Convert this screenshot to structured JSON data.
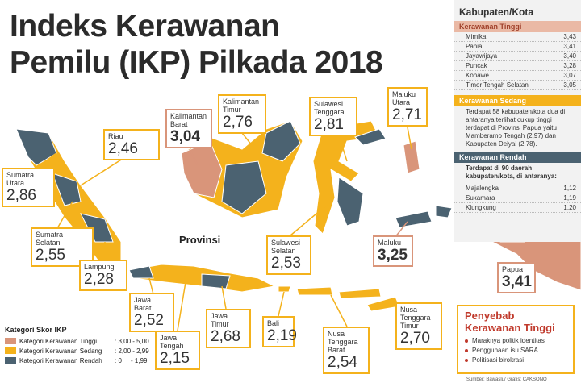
{
  "header": {
    "title_lines": [
      "Indeks Kerawanan",
      "Pemilu (IKP) Pilkada 2018"
    ]
  },
  "map": {
    "label": "Provinsi",
    "provinces": [
      {
        "name": "Riau",
        "score": "2,46",
        "level": "sedang"
      },
      {
        "name": "Sumatra Utara",
        "score": "2,86",
        "level": "sedang"
      },
      {
        "name": "Sumatra Selatan",
        "score": "2,55",
        "level": "sedang"
      },
      {
        "name": "Lampung",
        "score": "2,28",
        "level": "sedang"
      },
      {
        "name": "Kalimantan Barat",
        "score": "3,04",
        "level": "tinggi"
      },
      {
        "name": "Kalimantan Timur",
        "score": "2,76",
        "level": "sedang"
      },
      {
        "name": "Sulawesi Tenggara",
        "score": "2,81",
        "level": "sedang"
      },
      {
        "name": "Maluku Utara",
        "score": "2,71",
        "level": "sedang"
      },
      {
        "name": "Sulawesi Selatan",
        "score": "2,53",
        "level": "sedang"
      },
      {
        "name": "Maluku",
        "score": "3,25",
        "level": "tinggi"
      },
      {
        "name": "Papua",
        "score": "3,41",
        "level": "tinggi"
      },
      {
        "name": "Jawa Barat",
        "score": "2,52",
        "level": "sedang"
      },
      {
        "name": "Jawa Tengah",
        "score": "2,15",
        "level": "sedang"
      },
      {
        "name": "Jawa Timur",
        "score": "2,68",
        "level": "sedang"
      },
      {
        "name": "Bali",
        "score": "2,19",
        "level": "sedang"
      },
      {
        "name": "Nusa Tenggara Barat",
        "score": "2,54",
        "level": "sedang"
      },
      {
        "name": "Nusa Tenggara Timur",
        "score": "2,70",
        "level": "sedang"
      }
    ]
  },
  "legend": {
    "title": "Kategori Skor IKP",
    "items": [
      {
        "label": "Kategori Kerawanan Tinggi",
        "range": ": 3,00 - 5,00",
        "color": "#d9957a"
      },
      {
        "label": "Kategori Kerawanan Sedang",
        "range": ": 2,00 - 2,99",
        "color": "#f4b21c"
      },
      {
        "label": "Kategori Kerawanan Rendah",
        "range": ": 0     - 1,99",
        "color": "#4b6271"
      }
    ]
  },
  "panel": {
    "title": "Kabupaten/Kota",
    "tinggi": {
      "heading": "Kerawanan Tinggi",
      "rows": [
        [
          "Mimika",
          "3,43"
        ],
        [
          "Paniai",
          "3,41"
        ],
        [
          "Jayawijaya",
          "3,40"
        ],
        [
          "Puncak",
          "3,28"
        ],
        [
          "Konawe",
          "3,07"
        ],
        [
          "Timor Tengah Selatan",
          "3,05"
        ]
      ]
    },
    "sedang": {
      "heading": "Kerawanan Sedang",
      "text": "Terdapat 58 kabupaten/kota dua di antaranya terlihat cukup tinggi terdapat di Provinsi Papua yaitu Mamberamo Tengah (2,97) dan Kabupaten Deiyai (2,78)."
    },
    "rendah": {
      "heading": "Kerawanan Rendah",
      "intro": "Terdapat di 90 daerah kabupaten/kota, di antaranya:",
      "rows": [
        [
          "Majalengka",
          "1,12"
        ],
        [
          "Sukamara",
          "1,19"
        ],
        [
          "Klungkung",
          "1,20"
        ]
      ]
    }
  },
  "causes": {
    "title": "Penyebab Kerawanan Tinggi",
    "items": [
      "Maraknya politik identitas",
      "Penggunaan isu SARA",
      "Politisasi birokrasi"
    ]
  },
  "source": "Sumber: Bawaslu/ Grafis: CAKSONO"
}
